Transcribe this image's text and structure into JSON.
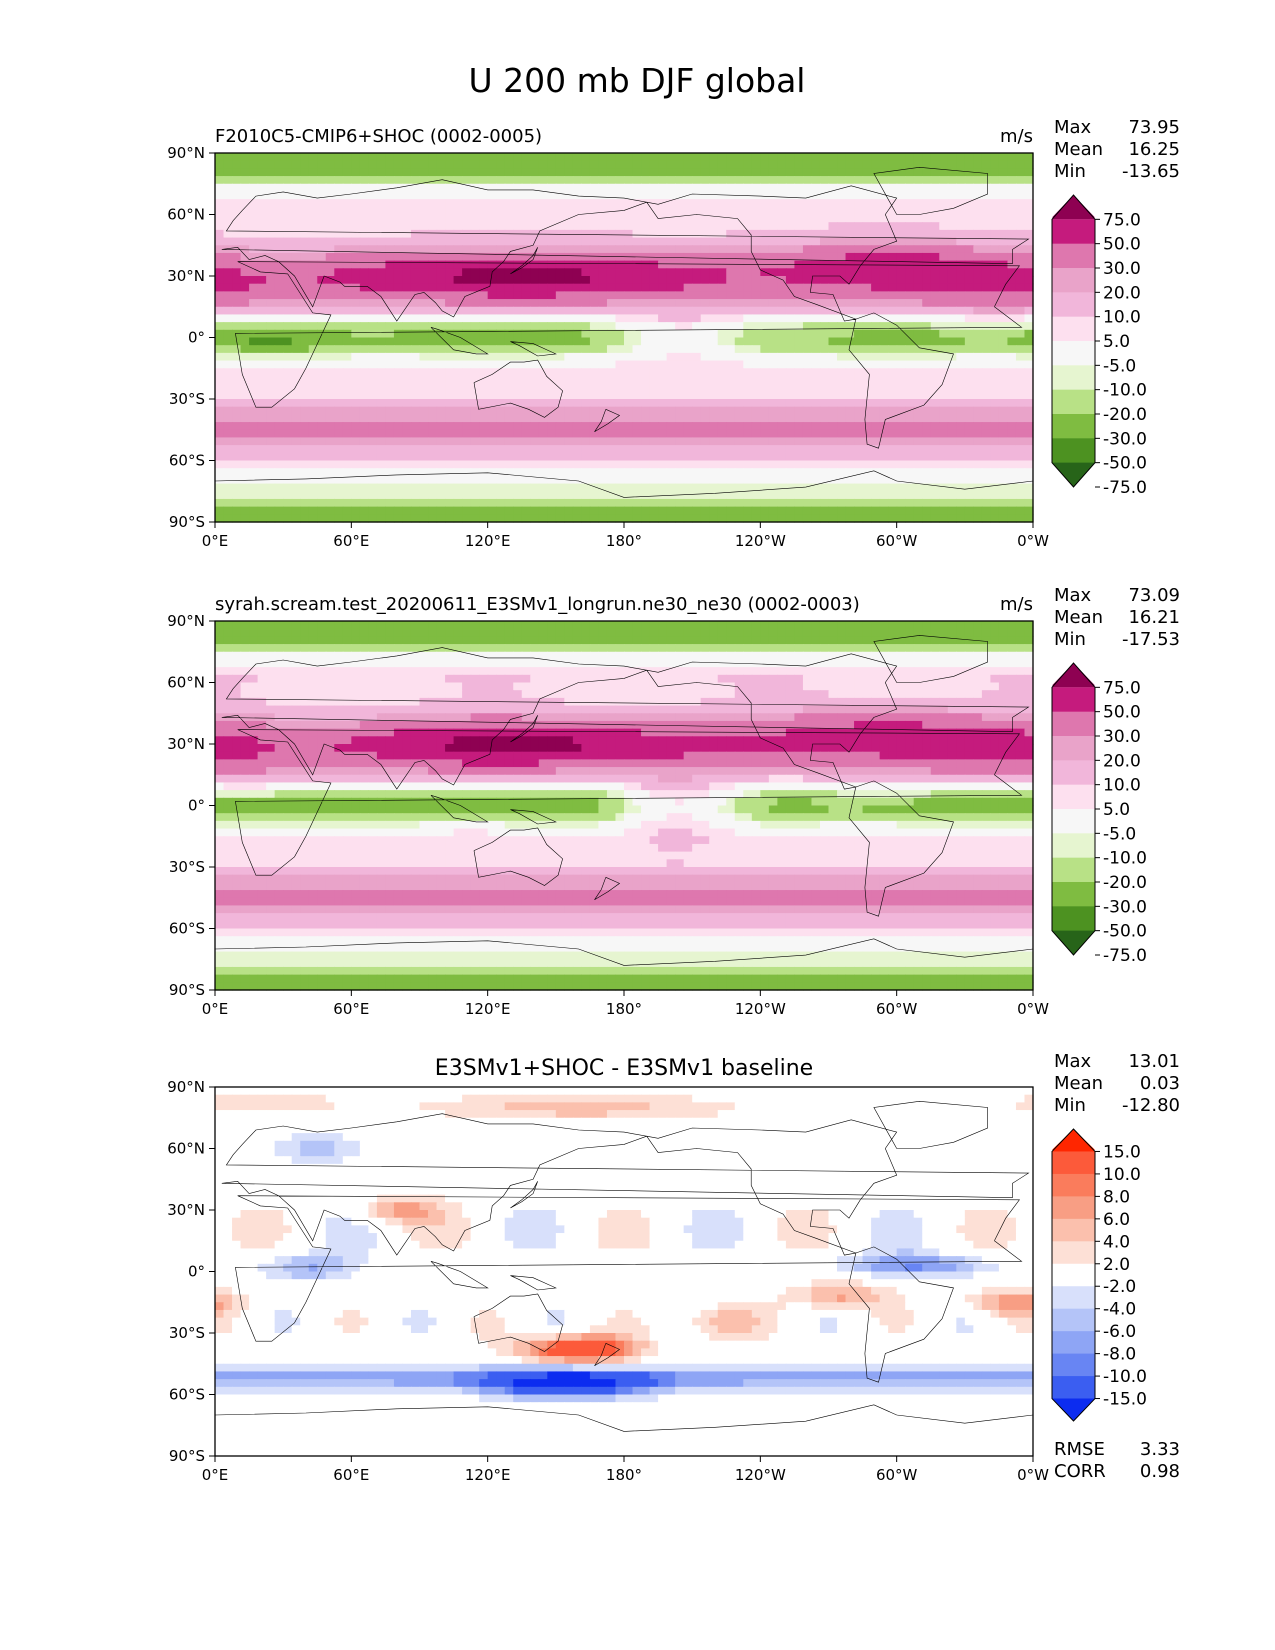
{
  "figure": {
    "title": "U 200 mb DJF global"
  },
  "longitude_ticks": [
    "0°E",
    "60°E",
    "120°E",
    "180°",
    "120°W",
    "60°W",
    "0°W"
  ],
  "latitude_ticks": [
    "90°N",
    "60°N",
    "30°N",
    "0°",
    "30°S",
    "60°S",
    "90°S"
  ],
  "stat_labels": {
    "max": "Max",
    "mean": "Mean",
    "min": "Min",
    "rmse": "RMSE",
    "corr": "CORR"
  },
  "panels": [
    {
      "id": "test",
      "title_left": "F2010C5-CMIP6+SHOC (0002-0005)",
      "title_center": "",
      "units": "m/s",
      "stats": {
        "max": "73.95",
        "mean": "16.25",
        "min": "-13.65"
      },
      "colorbar_ticks": [
        "75.0",
        "50.0",
        "30.0",
        "20.0",
        "10.0",
        "5.0",
        "-5.0",
        "-10.0",
        "-20.0",
        "-30.0",
        "-50.0",
        "-75.0"
      ],
      "colorbar_colors": [
        "#8e0152",
        "#c51b7d",
        "#de77ae",
        "#e9a3c9",
        "#f1b6da",
        "#fde0ef",
        "#f7f7f7",
        "#e6f5d0",
        "#b8e186",
        "#7fbc41",
        "#4d9221",
        "#276419"
      ]
    },
    {
      "id": "ref",
      "title_left": "syrah.scream.test_20200611_E3SMv1_longrun.ne30_ne30 (0002-0003)",
      "title_center": "",
      "units": "m/s",
      "stats": {
        "max": "73.09",
        "mean": "16.21",
        "min": "-17.53"
      },
      "colorbar_ticks": [
        "75.0",
        "50.0",
        "30.0",
        "20.0",
        "10.0",
        "5.0",
        "-5.0",
        "-10.0",
        "-20.0",
        "-30.0",
        "-50.0",
        "-75.0"
      ],
      "colorbar_colors": [
        "#8e0152",
        "#c51b7d",
        "#de77ae",
        "#e9a3c9",
        "#f1b6da",
        "#fde0ef",
        "#f7f7f7",
        "#e6f5d0",
        "#b8e186",
        "#7fbc41",
        "#4d9221",
        "#276419"
      ]
    },
    {
      "id": "diff",
      "title_left": "",
      "title_center": "E3SMv1+SHOC - E3SMv1 baseline",
      "units": "",
      "stats": {
        "max": "13.01",
        "mean": "0.03",
        "min": "-12.80"
      },
      "extra_stats": {
        "rmse": "3.33",
        "corr": "0.98"
      },
      "colorbar_ticks": [
        "15.0",
        "10.0",
        "8.0",
        "6.0",
        "4.0",
        "2.0",
        "-2.0",
        "-4.0",
        "-6.0",
        "-8.0",
        "-10.0",
        "-15.0"
      ],
      "colorbar_colors": [
        "#ff2600",
        "#fc5a3a",
        "#fa7c5c",
        "#f89e84",
        "#fbc0ad",
        "#fde0d6",
        "#ffffff",
        "#d8e0fb",
        "#b4c4f8",
        "#8ea5f5",
        "#6885f3",
        "#3b5ef1",
        "#0c2cf0"
      ]
    }
  ]
}
